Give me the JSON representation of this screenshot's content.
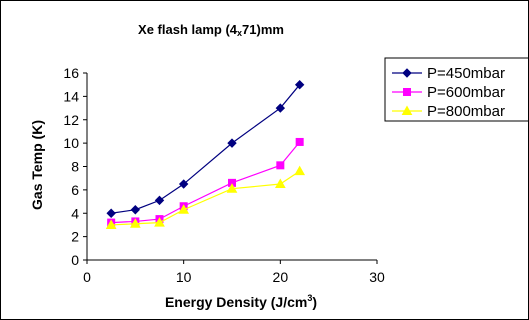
{
  "chart_data": {
    "type": "line",
    "title": "Xe flash lamp (4x71)mm",
    "title_parts": {
      "prefix": "Xe flash lamp (4",
      "x": "x",
      "suffix": "71)mm"
    },
    "xlabel": "Energy Density (J/cm3)",
    "xlabel_parts": {
      "prefix": "Energy Density (J/cm",
      "sup": "3",
      "suffix": ")"
    },
    "ylabel": "Gas Temp (K)",
    "xlim": [
      0,
      30
    ],
    "ylim": [
      0,
      16
    ],
    "x_ticks": [
      0,
      10,
      20,
      30
    ],
    "y_ticks": [
      0,
      2,
      4,
      6,
      8,
      10,
      12,
      14,
      16
    ],
    "grid": false,
    "legend_position": "right",
    "series": [
      {
        "name": "P=450mbar",
        "color": "#000080",
        "marker": "diamond",
        "x": [
          2.5,
          5,
          7.5,
          10,
          15,
          20,
          22
        ],
        "y": [
          4.0,
          4.3,
          5.1,
          6.5,
          10.0,
          13.0,
          15.0
        ]
      },
      {
        "name": "P=600mbar",
        "color": "#ff00ff",
        "marker": "square",
        "x": [
          2.5,
          5,
          7.5,
          10,
          15,
          20,
          22
        ],
        "y": [
          3.2,
          3.3,
          3.5,
          4.6,
          6.6,
          8.1,
          10.1
        ]
      },
      {
        "name": "P=800mbar",
        "color": "#ffff00",
        "marker": "triangle",
        "x": [
          2.5,
          5,
          7.5,
          10,
          15,
          20,
          22
        ],
        "y": [
          3.0,
          3.1,
          3.2,
          4.3,
          6.1,
          6.5,
          7.6
        ]
      }
    ]
  }
}
